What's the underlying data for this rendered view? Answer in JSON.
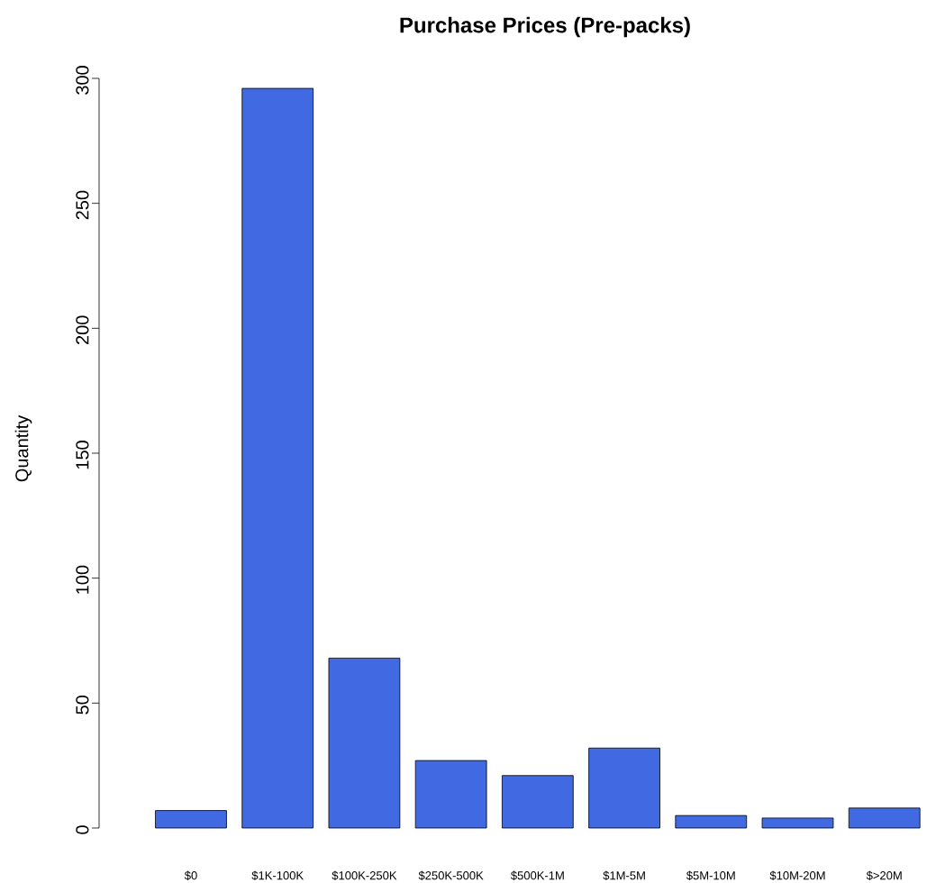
{
  "chart_data": {
    "type": "bar",
    "title": "Purchase Prices (Pre-packs)",
    "ylabel": "Quantity",
    "categories": [
      "$0",
      "$1K-100K",
      "$100K-250K",
      "$250K-500K",
      "$500K-1M",
      "$1M-5M",
      "$5M-10M",
      "$10M-20M",
      "$>20M"
    ],
    "values": [
      7,
      296,
      68,
      27,
      21,
      32,
      5,
      4,
      8
    ],
    "color": "#4169e1",
    "ylim": [
      0,
      300
    ],
    "yticks": [
      0,
      50,
      100,
      150,
      200,
      250,
      300
    ]
  }
}
